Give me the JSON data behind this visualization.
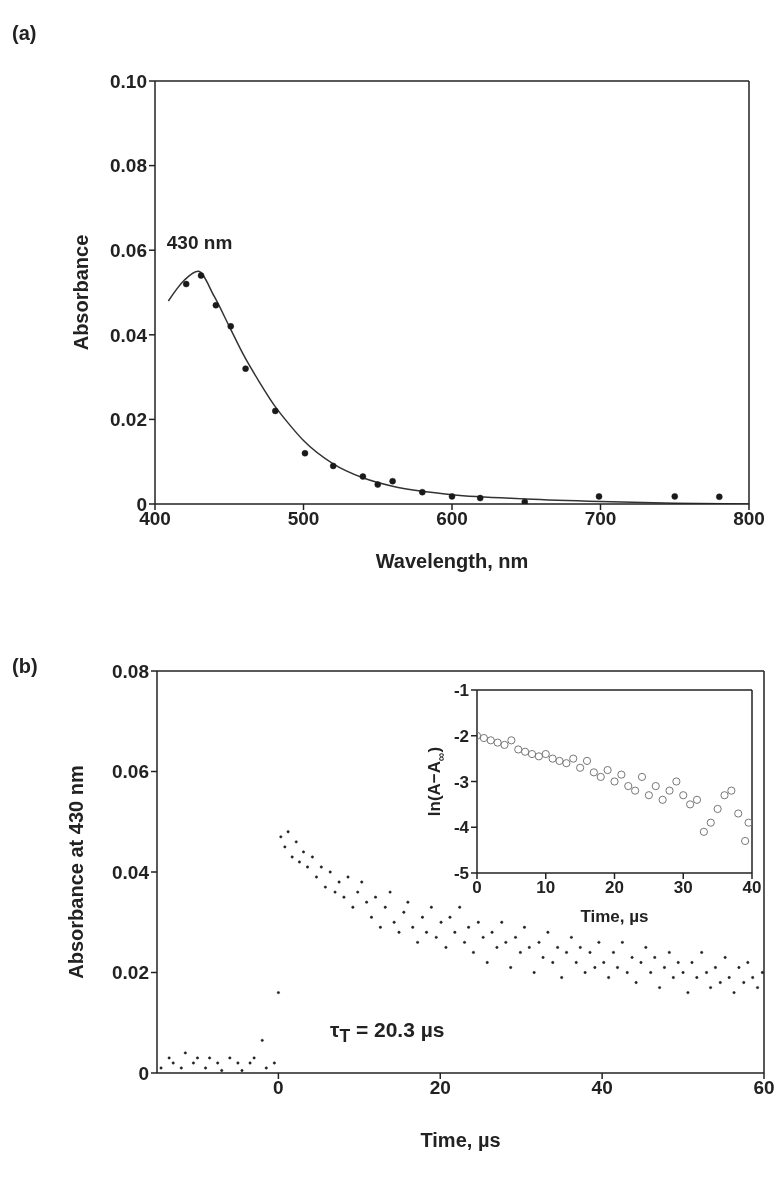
{
  "chart_data": [
    {
      "type": "scatter",
      "title": "(a)",
      "xlabel": "Wavelength, nm",
      "ylabel": "Absorbance",
      "xlim": [
        400,
        800
      ],
      "xticks": [
        400,
        500,
        600,
        700,
        800
      ],
      "ylim": [
        0,
        0.1
      ],
      "yticks": [
        0,
        0.02,
        0.04,
        0.06,
        0.08,
        {
          "value": 0.1,
          "label": "0.10"
        }
      ],
      "annotations": [
        {
          "text": "430 nm",
          "x": 430,
          "y": 0.055
        }
      ],
      "series": [
        {
          "marker": "circle",
          "color": "#1a1a1a",
          "x": [
            421,
            431,
            441,
            451,
            461,
            481,
            501,
            520,
            540,
            550,
            560,
            580,
            600,
            619,
            649,
            699,
            750,
            780
          ],
          "values": [
            0.052,
            0.054,
            0.047,
            0.042,
            0.032,
            0.022,
            0.012,
            0.009,
            0.0065,
            0.0046,
            0.0054,
            0.0028,
            0.0018,
            0.0014,
            0.0005,
            0.0018,
            0.0018,
            0.0017
          ]
        },
        {
          "type": "line",
          "marker": "none",
          "color": "#333333",
          "x": [
            409,
            420,
            429,
            440,
            450,
            460,
            470,
            480,
            490,
            500,
            520,
            540,
            560,
            580,
            600,
            650,
            700,
            750,
            800
          ],
          "values": [
            0.048,
            0.053,
            0.055,
            0.049,
            0.042,
            0.035,
            0.029,
            0.0235,
            0.019,
            0.015,
            0.0095,
            0.0062,
            0.0042,
            0.003,
            0.0022,
            0.0012,
            0.0006,
            0.0002,
            0
          ]
        }
      ]
    },
    {
      "type": "scatter",
      "title": "(b)",
      "xlabel": "Time, µs",
      "ylabel": "Absorbance at 430 nm",
      "xlim": [
        -15,
        60
      ],
      "xticks": [
        0,
        20,
        40,
        60
      ],
      "ylim": [
        0,
        0.08
      ],
      "yticks": [
        0,
        0.02,
        0.04,
        0.06,
        0.08
      ],
      "marker": "circle",
      "annotations": [
        "τ$_{T}$ = 20.3 µs"
      ],
      "series": [
        {
          "color": "#222222",
          "x": [
            -14.5,
            -13.5,
            -13,
            -12,
            -11.5,
            -10.5,
            -10,
            -9,
            -8.5,
            -7.5,
            -7,
            -6,
            -5,
            -4.5,
            -3.5,
            -3,
            -2,
            -1.5,
            -0.5,
            0,
            0.3,
            0.8,
            1.2,
            1.7,
            2.2,
            2.6,
            3.1,
            3.6,
            4.2,
            4.7,
            5.3,
            5.8,
            6.4,
            7.0,
            7.5,
            8.1,
            8.6,
            9.2,
            9.8,
            10.3,
            10.9,
            11.5,
            12.0,
            12.6,
            13.2,
            13.8,
            14.3,
            14.9,
            15.5,
            16.0,
            16.6,
            17.2,
            17.8,
            18.3,
            18.9,
            19.5,
            20.1,
            20.7,
            21.2,
            21.8,
            22.4,
            23.0,
            23.5,
            24.1,
            24.7,
            25.3,
            25.8,
            26.4,
            27.0,
            27.6,
            28.1,
            28.7,
            29.3,
            29.9,
            30.4,
            31.0,
            31.6,
            32.2,
            32.7,
            33.3,
            33.9,
            34.5,
            35.0,
            35.6,
            36.2,
            36.8,
            37.3,
            37.9,
            38.5,
            39.1,
            39.6,
            40.2,
            40.8,
            41.4,
            41.9,
            42.5,
            43.1,
            43.7,
            44.2,
            44.8,
            45.4,
            46.0,
            46.5,
            47.1,
            47.7,
            48.3,
            48.8,
            49.4,
            50.0,
            50.6,
            51.1,
            51.7,
            52.3,
            52.9,
            53.4,
            54.0,
            54.6,
            55.2,
            55.7,
            56.3,
            56.9,
            57.5,
            58.0,
            58.6,
            59.2,
            59.8
          ],
          "values": [
            0.001,
            0.003,
            0.002,
            0.001,
            0.004,
            0.002,
            0.003,
            0.001,
            0.003,
            0.002,
            0.0005,
            0.003,
            0.002,
            0.0005,
            0.002,
            0.003,
            0.0065,
            0.001,
            0.002,
            0.016,
            0.047,
            0.045,
            0.048,
            0.043,
            0.046,
            0.042,
            0.044,
            0.041,
            0.043,
            0.039,
            0.041,
            0.037,
            0.04,
            0.036,
            0.038,
            0.035,
            0.039,
            0.033,
            0.036,
            0.038,
            0.034,
            0.031,
            0.035,
            0.029,
            0.033,
            0.036,
            0.03,
            0.028,
            0.032,
            0.034,
            0.029,
            0.026,
            0.031,
            0.028,
            0.033,
            0.027,
            0.03,
            0.025,
            0.031,
            0.028,
            0.033,
            0.026,
            0.029,
            0.024,
            0.03,
            0.027,
            0.022,
            0.028,
            0.025,
            0.03,
            0.026,
            0.021,
            0.027,
            0.024,
            0.029,
            0.025,
            0.02,
            0.026,
            0.023,
            0.028,
            0.022,
            0.025,
            0.019,
            0.024,
            0.027,
            0.022,
            0.025,
            0.02,
            0.024,
            0.021,
            0.026,
            0.022,
            0.019,
            0.024,
            0.021,
            0.026,
            0.02,
            0.023,
            0.018,
            0.022,
            0.025,
            0.02,
            0.023,
            0.017,
            0.021,
            0.024,
            0.019,
            0.022,
            0.02,
            0.016,
            0.022,
            0.019,
            0.024,
            0.02,
            0.017,
            0.021,
            0.018,
            0.023,
            0.019,
            0.016,
            0.021,
            0.018,
            0.022,
            0.019,
            0.017,
            0.02
          ]
        }
      ]
    },
    {
      "type": "scatter",
      "xlabel": "Time, µs",
      "ylabel": "ln(A−A$_{∞}$)",
      "xlim": [
        0,
        40
      ],
      "xticks": [
        0,
        10,
        20,
        30,
        40
      ],
      "ylim": [
        -5,
        -1
      ],
      "yticks": [
        -5,
        -4,
        -3,
        -2,
        -1
      ],
      "marker": "circle",
      "series": [
        {
          "color": "#777777",
          "x": [
            0,
            1,
            2,
            3,
            4,
            5,
            6,
            7,
            8,
            9,
            10,
            11,
            12,
            13,
            14,
            15,
            16,
            17,
            18,
            19,
            20,
            21,
            22,
            23,
            24,
            25,
            26,
            27,
            28,
            29,
            30,
            31,
            32,
            33,
            34,
            35,
            36,
            37,
            38,
            39,
            39.5
          ],
          "values": [
            -2.0,
            -2.05,
            -2.1,
            -2.15,
            -2.2,
            -2.1,
            -2.3,
            -2.35,
            -2.4,
            -2.45,
            -2.4,
            -2.5,
            -2.55,
            -2.6,
            -2.5,
            -2.7,
            -2.55,
            -2.8,
            -2.9,
            -2.75,
            -3.0,
            -2.85,
            -3.1,
            -3.2,
            -2.9,
            -3.3,
            -3.1,
            -3.4,
            -3.2,
            -3.0,
            -3.3,
            -3.5,
            -3.4,
            -4.1,
            -3.9,
            -3.6,
            -3.3,
            -3.2,
            -3.7,
            -4.3,
            -3.9
          ]
        }
      ]
    }
  ]
}
